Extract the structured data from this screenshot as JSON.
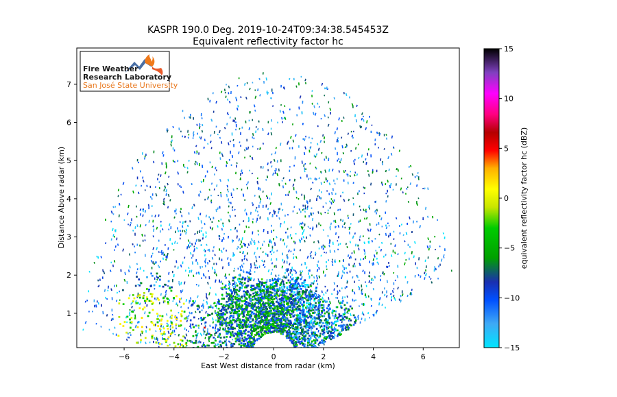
{
  "chart_data": {
    "type": "heatmap",
    "title_line1": "KASPR 190.0 Deg. 2019-10-24T09:34:38.545453Z",
    "title_line2": "Equivalent reflectivity factor hc",
    "xlabel": "East West distance from radar (km)",
    "ylabel": "Distance Above radar  (km)",
    "xlim": [
      -7.9,
      7.45
    ],
    "ylim": [
      0.1,
      7.95
    ],
    "xticks": [
      -6,
      -4,
      -2,
      0,
      2,
      4,
      6
    ],
    "yticks": [
      1,
      2,
      3,
      4,
      5,
      6,
      7
    ],
    "colorbar": {
      "label": "equivalent reflectivity factor hc (dBZ)",
      "min": -15,
      "max": 15,
      "ticks": [
        -15,
        -10,
        -5,
        0,
        5,
        10,
        15
      ]
    },
    "scan": {
      "max_range_km": 7.85,
      "min_range_km": 0.5,
      "elevation_start_deg": 20,
      "elevation_end_deg": 172,
      "near_surface_dbz_range": [
        -12,
        -2
      ],
      "left_near_surface_dbz_range": [
        -4,
        2
      ],
      "aloft_dbz_range": [
        -14,
        -5
      ]
    },
    "logo": {
      "line1": "Fire Weather",
      "line2": "Research Laboratory",
      "line3": "San José State University"
    }
  }
}
